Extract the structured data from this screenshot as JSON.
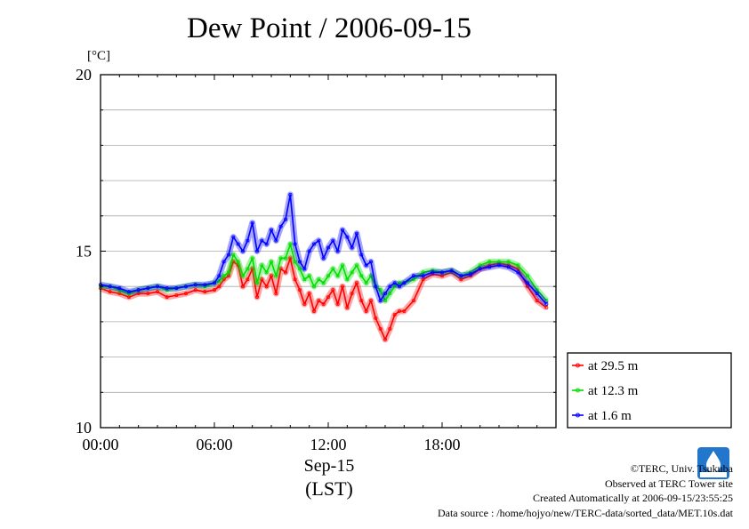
{
  "title": "Dew Point / 2006-09-15",
  "credits": {
    "copyright": "©TERC, Univ. Tsukuba",
    "observed": "Observed at TERC Tower site",
    "created": "Created Automatically at 2006-09-15/23:55:25",
    "source": "Data source : /home/hojyo/new/TERC-data/sorted_data/MET.10s.dat"
  },
  "colors": {
    "red": "#ff0000",
    "green": "#00dd00",
    "blue": "#0000ff",
    "grid": "#aaaaaa"
  },
  "chart_data": {
    "type": "line",
    "title": "Dew Point / 2006-09-15",
    "ylabel": "[°C]",
    "xlabel": "Sep-15",
    "xlabel2": "(LST)",
    "x_unit": "hour of day",
    "xlim": [
      0,
      24
    ],
    "ylim": [
      10,
      20
    ],
    "xticks": [
      0,
      6,
      12,
      18
    ],
    "xtick_labels": [
      "00:00",
      "06:00",
      "12:00",
      "18:00"
    ],
    "yticks": [
      10,
      15,
      20
    ],
    "ytick_labels": [
      "10",
      "15",
      "20"
    ],
    "grid": true,
    "legend_position": "right-bottom",
    "x": [
      0.0,
      0.5,
      1.0,
      1.5,
      2.0,
      2.5,
      3.0,
      3.5,
      4.0,
      4.5,
      5.0,
      5.5,
      6.0,
      6.25,
      6.5,
      6.75,
      7.0,
      7.25,
      7.5,
      7.75,
      8.0,
      8.25,
      8.5,
      8.75,
      9.0,
      9.25,
      9.5,
      9.75,
      10.0,
      10.25,
      10.5,
      10.75,
      11.0,
      11.25,
      11.5,
      11.75,
      12.0,
      12.25,
      12.5,
      12.75,
      13.0,
      13.25,
      13.5,
      13.75,
      14.0,
      14.25,
      14.5,
      14.75,
      15.0,
      15.25,
      15.5,
      15.75,
      16.0,
      16.5,
      17.0,
      17.5,
      18.0,
      18.5,
      19.0,
      19.5,
      20.0,
      20.5,
      21.0,
      21.5,
      22.0,
      22.5,
      23.0,
      23.5
    ],
    "series": [
      {
        "name": "at 29.5 m",
        "color": "#ff0000",
        "values": [
          13.95,
          13.85,
          13.8,
          13.7,
          13.8,
          13.8,
          13.85,
          13.7,
          13.75,
          13.8,
          13.9,
          13.85,
          13.9,
          14.0,
          14.2,
          14.3,
          14.7,
          14.6,
          14.0,
          14.2,
          14.5,
          13.7,
          14.2,
          14.0,
          14.3,
          13.8,
          14.5,
          14.4,
          14.8,
          14.2,
          13.9,
          13.5,
          13.8,
          13.3,
          13.6,
          13.5,
          13.7,
          13.9,
          13.5,
          14.0,
          13.4,
          13.8,
          14.1,
          13.6,
          13.3,
          13.6,
          13.1,
          12.8,
          12.5,
          12.8,
          13.2,
          13.3,
          13.3,
          13.6,
          14.2,
          14.35,
          14.3,
          14.4,
          14.2,
          14.3,
          14.5,
          14.6,
          14.65,
          14.6,
          14.5,
          14.0,
          13.6,
          13.4
        ]
      },
      {
        "name": "at 12.3 m",
        "color": "#00dd00",
        "values": [
          14.0,
          14.0,
          13.9,
          13.8,
          13.9,
          13.95,
          14.0,
          13.9,
          13.95,
          14.0,
          14.05,
          14.0,
          14.1,
          14.15,
          14.3,
          14.4,
          14.9,
          14.7,
          14.3,
          14.5,
          14.8,
          14.1,
          14.6,
          14.4,
          14.7,
          14.3,
          14.8,
          14.8,
          15.2,
          14.7,
          14.5,
          14.2,
          14.3,
          14.0,
          14.2,
          14.1,
          14.3,
          14.5,
          14.3,
          14.6,
          14.2,
          14.4,
          14.6,
          14.3,
          14.1,
          14.3,
          14.0,
          13.9,
          13.6,
          13.8,
          14.0,
          14.1,
          14.1,
          14.2,
          14.4,
          14.45,
          14.4,
          14.45,
          14.3,
          14.4,
          14.6,
          14.7,
          14.7,
          14.7,
          14.6,
          14.3,
          13.9,
          13.6
        ]
      },
      {
        "name": "at 1.6 m",
        "color": "#0000ff",
        "values": [
          14.05,
          14.0,
          13.95,
          13.85,
          13.9,
          13.95,
          14.0,
          13.95,
          13.95,
          14.0,
          14.05,
          14.05,
          14.1,
          14.3,
          14.7,
          14.9,
          15.4,
          15.2,
          15.0,
          15.3,
          15.8,
          15.0,
          15.3,
          15.2,
          15.6,
          15.3,
          15.7,
          15.9,
          16.6,
          15.2,
          14.7,
          14.5,
          15.0,
          15.2,
          15.3,
          14.8,
          15.1,
          15.3,
          15.0,
          15.6,
          15.4,
          15.1,
          15.5,
          14.9,
          14.6,
          14.7,
          14.0,
          13.6,
          13.8,
          14.0,
          14.1,
          14.0,
          14.1,
          14.3,
          14.3,
          14.4,
          14.4,
          14.45,
          14.3,
          14.35,
          14.5,
          14.55,
          14.6,
          14.55,
          14.4,
          14.1,
          13.8,
          13.5
        ]
      }
    ]
  }
}
